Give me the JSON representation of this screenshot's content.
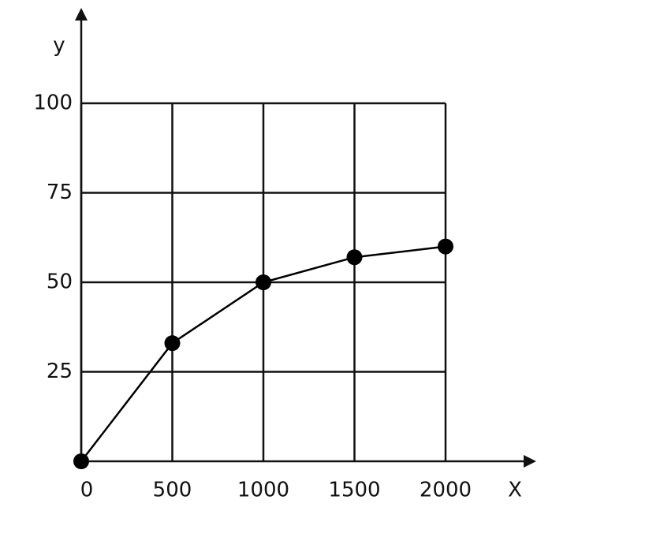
{
  "chart_data": {
    "type": "line",
    "x_label": "X",
    "y_label": "y",
    "x": [
      0,
      500,
      1000,
      1500,
      2000
    ],
    "series": [
      {
        "color": "#000000",
        "values": [
          0,
          33,
          50,
          57,
          60
        ]
      }
    ],
    "xlim": [
      0,
      2000
    ],
    "ylim": [
      0,
      100
    ],
    "xticks": [
      0,
      500,
      1000,
      1500,
      2000
    ],
    "yticks": [
      25,
      50,
      75,
      100
    ],
    "grid": true
  }
}
